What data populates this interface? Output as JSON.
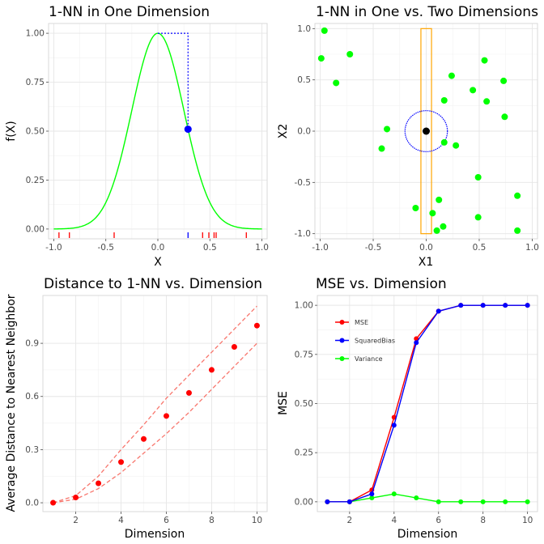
{
  "chart_data": [
    {
      "type": "line",
      "title": "1-NN in One Dimension",
      "xlabel": "X",
      "ylabel": "f(X)",
      "xlim": [
        -1.05,
        1.05
      ],
      "ylim": [
        -0.05,
        1.05
      ],
      "x_ticks": [
        -1.0,
        -0.5,
        0.0,
        0.5,
        1.0
      ],
      "x_tick_labels": [
        "-1.0",
        "-0.5",
        "0.0",
        "0.5",
        "1.0"
      ],
      "y_ticks": [
        0.0,
        0.25,
        0.5,
        0.75,
        1.0
      ],
      "y_tick_labels": [
        "0.00",
        "0.25",
        "0.50",
        "0.75",
        "1.00"
      ],
      "curve": "f(X) = exp(-8 X^2)",
      "curve_color": "#00ff00",
      "target_point": {
        "x": 0.29,
        "y": 0.51
      },
      "target_color": "#0000ff",
      "rug_red_x": [
        -0.95,
        -0.85,
        -0.42,
        0.43,
        0.49,
        0.54,
        0.56,
        0.85
      ],
      "rug_blue_x": [
        0.29
      ],
      "rug_red_color": "#ff0000",
      "rug_blue_color": "#0000ff",
      "grid": true
    },
    {
      "type": "scatter",
      "title": "1-NN in One vs. Two Dimensions",
      "xlabel": "X1",
      "ylabel": "X2",
      "xlim": [
        -1.05,
        1.05
      ],
      "ylim": [
        -1.05,
        1.05
      ],
      "x_ticks": [
        -1.0,
        -0.5,
        0.0,
        0.5,
        1.0
      ],
      "x_tick_labels": [
        "-1.0",
        "-0.5",
        "0.0",
        "0.5",
        "1.0"
      ],
      "y_ticks": [
        -1.0,
        -0.5,
        0.0,
        0.5,
        1.0
      ],
      "y_tick_labels": [
        "-1.0",
        "-0.5",
        "0.0",
        "0.5",
        "1.0"
      ],
      "points": [
        {
          "x": -0.96,
          "y": 0.98
        },
        {
          "x": -0.99,
          "y": 0.71
        },
        {
          "x": -0.72,
          "y": 0.75
        },
        {
          "x": -0.85,
          "y": 0.47
        },
        {
          "x": 0.24,
          "y": 0.54
        },
        {
          "x": 0.55,
          "y": 0.69
        },
        {
          "x": 0.73,
          "y": 0.49
        },
        {
          "x": 0.44,
          "y": 0.4
        },
        {
          "x": 0.57,
          "y": 0.29
        },
        {
          "x": 0.17,
          "y": 0.3
        },
        {
          "x": 0.74,
          "y": 0.14
        },
        {
          "x": -0.37,
          "y": 0.02
        },
        {
          "x": -0.42,
          "y": -0.17
        },
        {
          "x": 0.17,
          "y": -0.11
        },
        {
          "x": 0.28,
          "y": -0.14
        },
        {
          "x": 0.49,
          "y": -0.45
        },
        {
          "x": 0.86,
          "y": -0.63
        },
        {
          "x": 0.12,
          "y": -0.67
        },
        {
          "x": -0.1,
          "y": -0.75
        },
        {
          "x": 0.06,
          "y": -0.8
        },
        {
          "x": 0.49,
          "y": -0.84
        },
        {
          "x": 0.16,
          "y": -0.93
        },
        {
          "x": 0.1,
          "y": -0.97
        },
        {
          "x": 0.86,
          "y": -0.97
        }
      ],
      "point_color": "#00ff00",
      "target_point": {
        "x": 0.0,
        "y": 0.0
      },
      "target_color": "#000000",
      "neighborhood_circle_radius": 0.2,
      "circle_color": "#0000ff",
      "slab_x_range": [
        -0.05,
        0.05
      ],
      "slab_y_range": [
        -1.0,
        1.0
      ],
      "slab_color": "#ffa500",
      "grid": true
    },
    {
      "type": "scatter",
      "title": "Distance to 1-NN vs. Dimension",
      "xlabel": "Dimension",
      "ylabel": "Average Distance to Nearest Neighbor",
      "xlim": [
        0.55,
        10.45
      ],
      "ylim": [
        -0.05,
        1.17
      ],
      "x_ticks": [
        2,
        4,
        6,
        8,
        10
      ],
      "x_tick_labels": [
        "2",
        "4",
        "6",
        "8",
        "10"
      ],
      "y_ticks": [
        0.0,
        0.3,
        0.6,
        0.9
      ],
      "y_tick_labels": [
        "0.0",
        "0.3",
        "0.6",
        "0.9"
      ],
      "x": [
        1,
        2,
        3,
        4,
        5,
        6,
        7,
        8,
        9,
        10
      ],
      "values": [
        0.0,
        0.03,
        0.11,
        0.23,
        0.36,
        0.49,
        0.62,
        0.75,
        0.88,
        1.0
      ],
      "band_upper": [
        0.0,
        0.04,
        0.15,
        0.3,
        0.44,
        0.59,
        0.72,
        0.85,
        0.98,
        1.11
      ],
      "band_lower": [
        0.0,
        0.02,
        0.08,
        0.17,
        0.28,
        0.39,
        0.51,
        0.64,
        0.77,
        0.9
      ],
      "point_color": "#ff0000",
      "band_color": "#f8766d",
      "grid": true
    },
    {
      "type": "line",
      "title": "MSE vs. Dimension",
      "xlabel": "Dimension",
      "ylabel": "MSE",
      "xlim": [
        0.55,
        10.45
      ],
      "ylim": [
        -0.05,
        1.05
      ],
      "x_ticks": [
        2,
        4,
        6,
        8,
        10
      ],
      "x_tick_labels": [
        "2",
        "4",
        "6",
        "8",
        "10"
      ],
      "y_ticks": [
        0.0,
        0.25,
        0.5,
        0.75,
        1.0
      ],
      "y_tick_labels": [
        "0.00",
        "0.25",
        "0.50",
        "0.75",
        "1.00"
      ],
      "x": [
        1,
        2,
        3,
        4,
        5,
        6,
        7,
        8,
        9,
        10
      ],
      "series": [
        {
          "name": "MSE",
          "color": "#ff0000",
          "values": [
            0.0,
            0.0,
            0.06,
            0.43,
            0.83,
            0.97,
            1.0,
            1.0,
            1.0,
            1.0
          ]
        },
        {
          "name": "SquaredBias",
          "color": "#0000ff",
          "values": [
            0.0,
            0.0,
            0.04,
            0.39,
            0.81,
            0.97,
            1.0,
            1.0,
            1.0,
            1.0
          ]
        },
        {
          "name": "Variance",
          "color": "#00ff00",
          "values": [
            0.0,
            0.0,
            0.02,
            0.04,
            0.02,
            0.0,
            0.0,
            0.0,
            0.0,
            0.0
          ]
        }
      ],
      "legend": "top-left",
      "grid": true
    }
  ]
}
